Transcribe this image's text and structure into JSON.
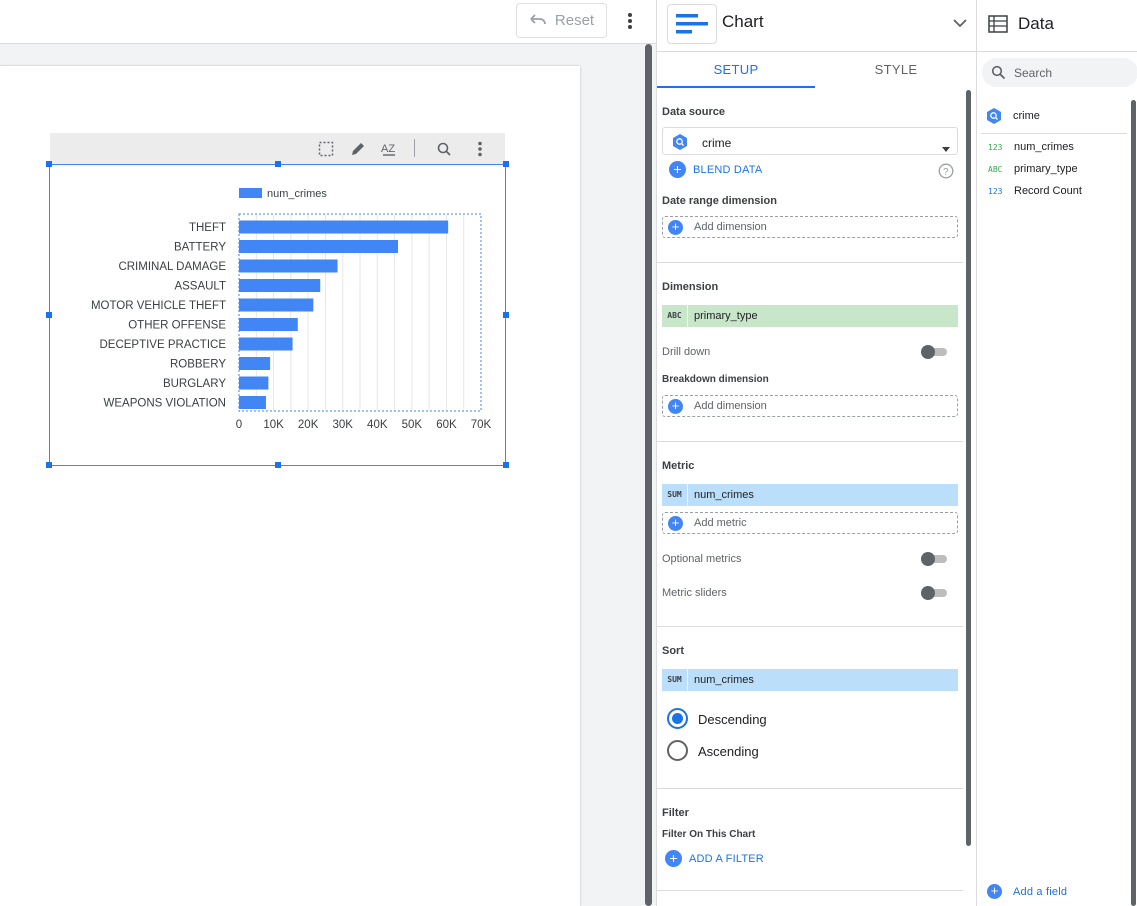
{
  "topbar": {
    "reset_label": "Reset"
  },
  "chart_data": {
    "type": "bar",
    "orientation": "horizontal",
    "title": "",
    "legend": [
      "num_crimes"
    ],
    "legend_position": "top",
    "categories": [
      "THEFT",
      "BATTERY",
      "CRIMINAL DAMAGE",
      "ASSAULT",
      "MOTOR VEHICLE THEFT",
      "OTHER OFFENSE",
      "DECEPTIVE PRACTICE",
      "ROBBERY",
      "BURGLARY",
      "WEAPONS VIOLATION"
    ],
    "series": [
      {
        "name": "num_crimes",
        "values": [
          60500,
          46000,
          28500,
          23500,
          21500,
          17000,
          15500,
          9000,
          8500,
          7800
        ]
      }
    ],
    "xlim": [
      0,
      70000
    ],
    "x_ticks": [
      "0",
      "10K",
      "20K",
      "30K",
      "40K",
      "50K",
      "60K",
      "70K"
    ],
    "grid": "vertical",
    "color": "#4285f4"
  },
  "panel": {
    "title": "Chart",
    "tabs": [
      "SETUP",
      "STYLE"
    ],
    "data_source": {
      "label": "Data source",
      "value": "crime",
      "blend": "BLEND DATA"
    },
    "date_range": {
      "label": "Date range dimension",
      "add": "Add dimension"
    },
    "dimension": {
      "label": "Dimension",
      "tag": "ABC",
      "value": "primary_type",
      "drill_down": "Drill down",
      "breakdown_label": "Breakdown dimension",
      "breakdown_add": "Add dimension"
    },
    "metric": {
      "label": "Metric",
      "tag": "SUM",
      "value": "num_crimes",
      "add": "Add metric",
      "optional": "Optional metrics",
      "sliders": "Metric sliders"
    },
    "sort": {
      "label": "Sort",
      "tag": "SUM",
      "value": "num_crimes",
      "descending": "Descending",
      "ascending": "Ascending"
    },
    "filter": {
      "label": "Filter",
      "sub": "Filter On This Chart",
      "add": "ADD A FILTER"
    }
  },
  "data_panel": {
    "title": "Data",
    "search_placeholder": "Search",
    "source": "crime",
    "fields": [
      {
        "type": "123",
        "name": "num_crimes",
        "color": "#34a853"
      },
      {
        "type": "ABC",
        "name": "primary_type",
        "color": "#34a853"
      },
      {
        "type": "123",
        "name": "Record Count",
        "color": "#1a73e8"
      }
    ],
    "add_field": "Add a field"
  },
  "colors": {
    "accent": "#1a73e8",
    "bar": "#4285f4",
    "dimension_chip": "#c8e6c9",
    "metric_chip": "#bbdefb"
  }
}
